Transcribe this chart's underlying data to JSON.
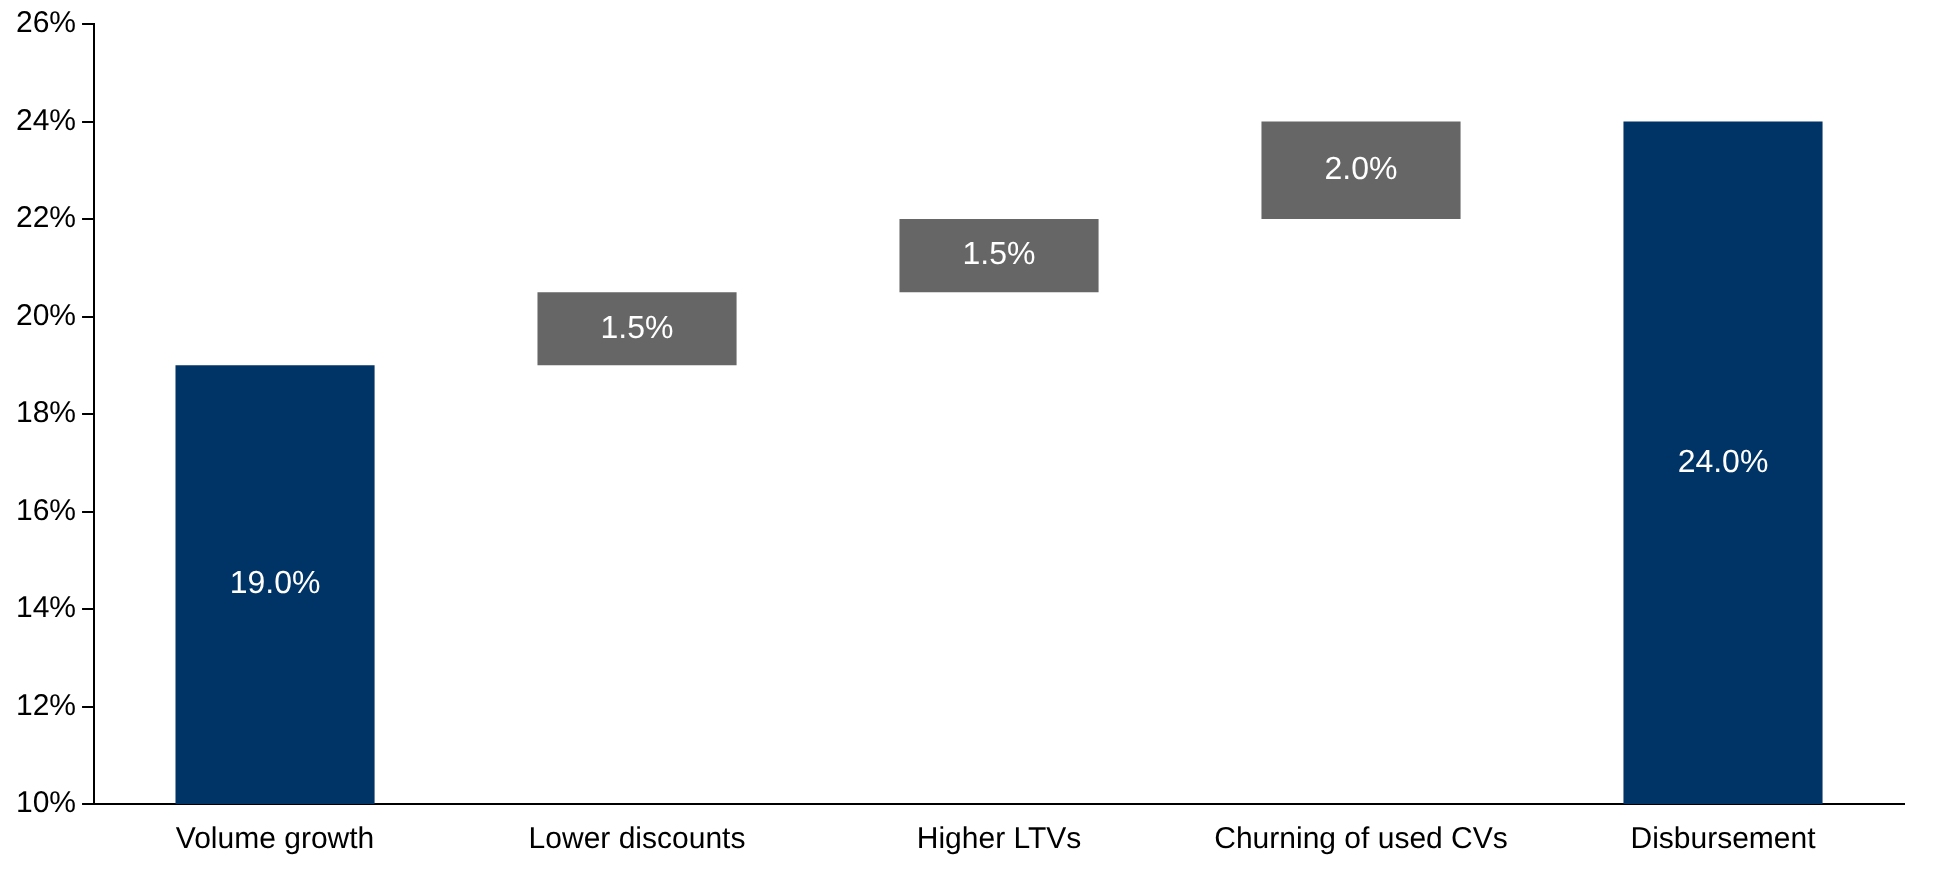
{
  "chart_data": {
    "type": "bar",
    "categories": [
      "Volume growth",
      "Lower discounts",
      "Higher LTVs",
      "Churning of used CVs",
      "Disbursement"
    ],
    "values": [
      19,
      1.5,
      1.5,
      2,
      24
    ],
    "base": [
      null,
      19,
      20.5,
      22,
      null
    ],
    "colors": [
      "#003366",
      "#666666",
      "#666666",
      "#666666",
      "#003366"
    ],
    "value_labels": [
      "19.0%",
      "1.5%",
      "1.5%",
      "2.0%",
      "24.0%"
    ],
    "ylim": [
      10,
      26
    ],
    "yticks": [
      {
        "value": 10,
        "label": "10%"
      },
      {
        "value": 12,
        "label": "12%"
      },
      {
        "value": 14,
        "label": "14%"
      },
      {
        "value": 16,
        "label": "16%"
      },
      {
        "value": 18,
        "label": "18%"
      },
      {
        "value": 20,
        "label": "20%"
      },
      {
        "value": 22,
        "label": "22%"
      },
      {
        "value": 24,
        "label": "24%"
      },
      {
        "value": 26,
        "label": "26%"
      }
    ],
    "grid": false,
    "legend": false
  }
}
